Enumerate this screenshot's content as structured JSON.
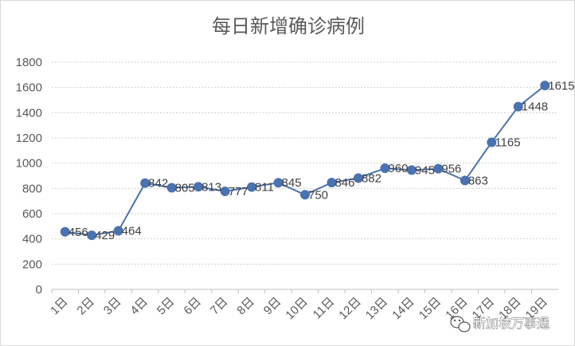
{
  "chart_data": {
    "type": "line",
    "title": "每日新增确诊病例",
    "xlabel": "",
    "ylabel": "",
    "categories": [
      "1日",
      "2日",
      "3日",
      "4日",
      "5日",
      "6日",
      "7日",
      "8日",
      "9日",
      "10日",
      "11日",
      "12日",
      "13日",
      "14日",
      "15日",
      "16日",
      "17日",
      "18日",
      "19日"
    ],
    "series": [
      {
        "name": "每日新增确诊病例",
        "values": [
          456,
          429,
          464,
          842,
          805,
          813,
          777,
          811,
          845,
          750,
          846,
          882,
          960,
          945,
          956,
          863,
          1165,
          1448,
          1615
        ]
      }
    ],
    "ylim": [
      0,
      1800
    ],
    "yticks": [
      0,
      200,
      400,
      600,
      800,
      1000,
      1200,
      1400,
      1600,
      1800
    ],
    "grid": true,
    "legend": "none",
    "colors": {
      "line": "#4a72b0",
      "marker": "#4a72b0",
      "grid": "#d0d0d0",
      "axis": "#bfbfbf"
    }
  },
  "watermark": {
    "text": "新加坡万事通",
    "icon": "wechat-icon"
  }
}
